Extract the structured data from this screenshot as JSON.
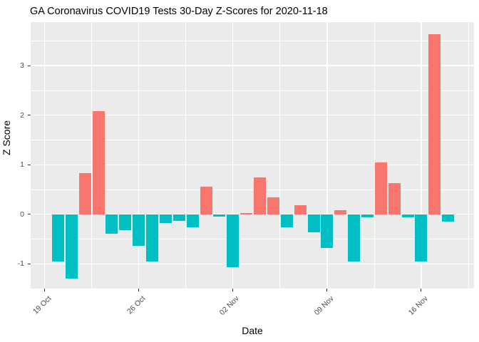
{
  "title": "GA Coronavirus COVID19 Tests 30-Day Z-Scores for 2020-11-18",
  "chart_data": {
    "type": "bar",
    "title": "GA Coronavirus COVID19 Tests 30-Day Z-Scores for 2020-11-18",
    "xlabel": "Date",
    "ylabel": "Z Score",
    "ylim": [
      -1.5,
      3.88
    ],
    "grid": "major+minor, white on gray panel",
    "legend": "none",
    "colors": {
      "positive": "#F8766D",
      "negative": "#00BFC4",
      "panel_bg": "#EBEBEB",
      "grid": "#FFFFFF",
      "tick_text": "#4D4D4D",
      "axis_text": "#000000"
    },
    "x_ticks": [
      {
        "label": "19 Oct",
        "day": 0
      },
      {
        "label": "26 Oct",
        "day": 7
      },
      {
        "label": "02 Nov",
        "day": 14
      },
      {
        "label": "09 Nov",
        "day": 21
      },
      {
        "label": "16 Nov",
        "day": 28
      }
    ],
    "minor_x_days": [
      3.5,
      10.5,
      17.5,
      24.5,
      31.5
    ],
    "y_ticks": [
      -1,
      0,
      1,
      2,
      3
    ],
    "minor_y": [
      -0.5,
      0.5,
      1.5,
      2.5,
      3.5
    ],
    "series": [
      {
        "date": "2020-10-20",
        "value": -0.96
      },
      {
        "date": "2020-10-21",
        "value": -1.3
      },
      {
        "date": "2020-10-22",
        "value": 0.83
      },
      {
        "date": "2020-10-23",
        "value": 2.08
      },
      {
        "date": "2020-10-24",
        "value": -0.39
      },
      {
        "date": "2020-10-25",
        "value": -0.32
      },
      {
        "date": "2020-10-26",
        "value": -0.63
      },
      {
        "date": "2020-10-27",
        "value": -0.96
      },
      {
        "date": "2020-10-28",
        "value": -0.17
      },
      {
        "date": "2020-10-29",
        "value": -0.14
      },
      {
        "date": "2020-10-30",
        "value": -0.26
      },
      {
        "date": "2020-10-31",
        "value": 0.56
      },
      {
        "date": "2020-11-01",
        "value": -0.05
      },
      {
        "date": "2020-11-02",
        "value": -1.07
      },
      {
        "date": "2020-11-03",
        "value": 0.03
      },
      {
        "date": "2020-11-04",
        "value": 0.75
      },
      {
        "date": "2020-11-05",
        "value": 0.34
      },
      {
        "date": "2020-11-06",
        "value": -0.26
      },
      {
        "date": "2020-11-07",
        "value": 0.18
      },
      {
        "date": "2020-11-08",
        "value": -0.37
      },
      {
        "date": "2020-11-09",
        "value": -0.68
      },
      {
        "date": "2020-11-10",
        "value": 0.08
      },
      {
        "date": "2020-11-11",
        "value": -0.95
      },
      {
        "date": "2020-11-12",
        "value": -0.06
      },
      {
        "date": "2020-11-13",
        "value": 1.05
      },
      {
        "date": "2020-11-14",
        "value": 0.63
      },
      {
        "date": "2020-11-15",
        "value": -0.06
      },
      {
        "date": "2020-11-16",
        "value": -0.95
      },
      {
        "date": "2020-11-17",
        "value": 3.64
      },
      {
        "date": "2020-11-18",
        "value": -0.15
      }
    ]
  }
}
